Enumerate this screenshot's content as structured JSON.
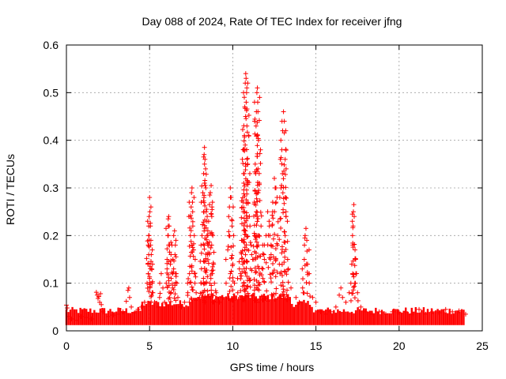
{
  "chart_data": {
    "type": "scatter",
    "title": "Day 088 of 2024, Rate Of TEC Index for receiver jfng",
    "xlabel": "GPS time / hours",
    "ylabel": "ROTI / TECUs",
    "xlim": [
      0,
      25
    ],
    "ylim": [
      0,
      0.6
    ],
    "xticks": [
      "0",
      "5",
      "10",
      "15",
      "20",
      "25"
    ],
    "yticks": [
      "0",
      "0.1",
      "0.2",
      "0.3",
      "0.4",
      "0.5",
      "0.6"
    ],
    "grid": true,
    "marker": "+",
    "color": "#ff0000",
    "series": [
      {
        "name": "ROTI",
        "points": [
          [
            0.0,
            0.054
          ],
          [
            0.05,
            0.048
          ],
          [
            0.1,
            0.03
          ],
          [
            0.3,
            0.025
          ],
          [
            0.6,
            0.022
          ],
          [
            0.9,
            0.03
          ],
          [
            1.2,
            0.028
          ],
          [
            1.5,
            0.025
          ],
          [
            1.8,
            0.081
          ],
          [
            1.85,
            0.075
          ],
          [
            1.9,
            0.068
          ],
          [
            1.95,
            0.072
          ],
          [
            2.0,
            0.06
          ],
          [
            2.05,
            0.078
          ],
          [
            2.1,
            0.055
          ],
          [
            2.2,
            0.04
          ],
          [
            2.5,
            0.03
          ],
          [
            2.8,
            0.033
          ],
          [
            3.1,
            0.035
          ],
          [
            3.4,
            0.04
          ],
          [
            3.6,
            0.062
          ],
          [
            3.7,
            0.085
          ],
          [
            3.75,
            0.09
          ],
          [
            3.8,
            0.07
          ],
          [
            3.9,
            0.05
          ],
          [
            4.1,
            0.038
          ],
          [
            4.3,
            0.045
          ],
          [
            4.5,
            0.05
          ],
          [
            4.7,
            0.06
          ],
          [
            4.85,
            0.1
          ],
          [
            4.9,
            0.14
          ],
          [
            4.92,
            0.18
          ],
          [
            4.95,
            0.2
          ],
          [
            4.97,
            0.24
          ],
          [
            5.0,
            0.28
          ],
          [
            5.02,
            0.25
          ],
          [
            5.05,
            0.22
          ],
          [
            5.08,
            0.19
          ],
          [
            5.1,
            0.16
          ],
          [
            5.12,
            0.13
          ],
          [
            5.15,
            0.1
          ],
          [
            5.2,
            0.08
          ],
          [
            5.3,
            0.06
          ],
          [
            5.5,
            0.05
          ],
          [
            5.6,
            0.07
          ],
          [
            5.7,
            0.12
          ],
          [
            5.8,
            0.09
          ],
          [
            5.9,
            0.06
          ],
          [
            6.0,
            0.1
          ],
          [
            6.05,
            0.15
          ],
          [
            6.1,
            0.2
          ],
          [
            6.12,
            0.235
          ],
          [
            6.15,
            0.24
          ],
          [
            6.18,
            0.22
          ],
          [
            6.2,
            0.18
          ],
          [
            6.25,
            0.14
          ],
          [
            6.3,
            0.11
          ],
          [
            6.4,
            0.15
          ],
          [
            6.45,
            0.2
          ],
          [
            6.5,
            0.21
          ],
          [
            6.55,
            0.18
          ],
          [
            6.6,
            0.12
          ],
          [
            6.7,
            0.07
          ],
          [
            6.9,
            0.05
          ],
          [
            7.1,
            0.06
          ],
          [
            7.3,
            0.08
          ],
          [
            7.4,
            0.12
          ],
          [
            7.45,
            0.2
          ],
          [
            7.5,
            0.26
          ],
          [
            7.52,
            0.29
          ],
          [
            7.55,
            0.3
          ],
          [
            7.58,
            0.27
          ],
          [
            7.6,
            0.22
          ],
          [
            7.65,
            0.17
          ],
          [
            7.7,
            0.12
          ],
          [
            7.8,
            0.08
          ],
          [
            8.0,
            0.07
          ],
          [
            8.1,
            0.1
          ],
          [
            8.15,
            0.2
          ],
          [
            8.2,
            0.29
          ],
          [
            8.25,
            0.33
          ],
          [
            8.28,
            0.37
          ],
          [
            8.3,
            0.385
          ],
          [
            8.33,
            0.36
          ],
          [
            8.38,
            0.3
          ],
          [
            8.4,
            0.25
          ],
          [
            8.45,
            0.2
          ],
          [
            8.5,
            0.18
          ],
          [
            8.55,
            0.23
          ],
          [
            8.6,
            0.265
          ],
          [
            8.65,
            0.29
          ],
          [
            8.7,
            0.305
          ],
          [
            8.75,
            0.26
          ],
          [
            8.8,
            0.2
          ],
          [
            8.85,
            0.14
          ],
          [
            8.9,
            0.1
          ],
          [
            9.0,
            0.08
          ],
          [
            9.2,
            0.06
          ],
          [
            9.4,
            0.07
          ],
          [
            9.6,
            0.1
          ],
          [
            9.7,
            0.17
          ],
          [
            9.8,
            0.26
          ],
          [
            9.85,
            0.3
          ],
          [
            9.9,
            0.28
          ],
          [
            9.95,
            0.22
          ],
          [
            10.0,
            0.14
          ],
          [
            10.1,
            0.1
          ],
          [
            10.3,
            0.08
          ],
          [
            10.4,
            0.13
          ],
          [
            10.5,
            0.165
          ],
          [
            10.6,
            0.14
          ],
          [
            10.62,
            0.27
          ],
          [
            10.65,
            0.33
          ],
          [
            10.67,
            0.38
          ],
          [
            10.7,
            0.41
          ],
          [
            10.72,
            0.47
          ],
          [
            10.75,
            0.52
          ],
          [
            10.78,
            0.54
          ],
          [
            10.8,
            0.53
          ],
          [
            10.83,
            0.5
          ],
          [
            10.85,
            0.43
          ],
          [
            10.9,
            0.35
          ],
          [
            11.0,
            0.24
          ],
          [
            11.1,
            0.18
          ],
          [
            11.2,
            0.15
          ],
          [
            11.3,
            0.27
          ],
          [
            11.35,
            0.35
          ],
          [
            11.4,
            0.43
          ],
          [
            11.42,
            0.46
          ],
          [
            11.45,
            0.5
          ],
          [
            11.48,
            0.51
          ],
          [
            11.5,
            0.48
          ],
          [
            11.55,
            0.4
          ],
          [
            11.6,
            0.31
          ],
          [
            11.7,
            0.22
          ],
          [
            11.8,
            0.18
          ],
          [
            11.9,
            0.15
          ],
          [
            12.0,
            0.2
          ],
          [
            12.1,
            0.25
          ],
          [
            12.2,
            0.22
          ],
          [
            12.3,
            0.18
          ],
          [
            12.4,
            0.27
          ],
          [
            12.5,
            0.32
          ],
          [
            12.55,
            0.3
          ],
          [
            12.6,
            0.27
          ],
          [
            12.7,
            0.2
          ],
          [
            12.8,
            0.14
          ],
          [
            12.9,
            0.3
          ],
          [
            12.95,
            0.38
          ],
          [
            13.0,
            0.42
          ],
          [
            13.05,
            0.46
          ],
          [
            13.1,
            0.44
          ],
          [
            13.15,
            0.36
          ],
          [
            13.2,
            0.25
          ],
          [
            13.3,
            0.15
          ],
          [
            13.5,
            0.09
          ],
          [
            13.8,
            0.07
          ],
          [
            14.0,
            0.06
          ],
          [
            14.2,
            0.09
          ],
          [
            14.3,
            0.15
          ],
          [
            14.35,
            0.2
          ],
          [
            14.4,
            0.215
          ],
          [
            14.45,
            0.19
          ],
          [
            14.5,
            0.14
          ],
          [
            14.6,
            0.1
          ],
          [
            14.8,
            0.07
          ],
          [
            15.0,
            0.06
          ],
          [
            15.3,
            0.04
          ],
          [
            15.6,
            0.035
          ],
          [
            15.9,
            0.04
          ],
          [
            16.2,
            0.05
          ],
          [
            16.4,
            0.075
          ],
          [
            16.5,
            0.09
          ],
          [
            16.6,
            0.07
          ],
          [
            16.8,
            0.06
          ],
          [
            17.0,
            0.08
          ],
          [
            17.1,
            0.1
          ],
          [
            17.15,
            0.14
          ],
          [
            17.2,
            0.2
          ],
          [
            17.25,
            0.25
          ],
          [
            17.28,
            0.265
          ],
          [
            17.3,
            0.24
          ],
          [
            17.35,
            0.17
          ],
          [
            17.4,
            0.12
          ],
          [
            17.5,
            0.08
          ],
          [
            17.7,
            0.05
          ],
          [
            18.0,
            0.04
          ],
          [
            18.4,
            0.035
          ],
          [
            18.8,
            0.04
          ],
          [
            19.2,
            0.035
          ],
          [
            19.6,
            0.04
          ],
          [
            20.0,
            0.038
          ],
          [
            20.4,
            0.04
          ],
          [
            20.8,
            0.035
          ],
          [
            21.2,
            0.045
          ],
          [
            21.6,
            0.035
          ],
          [
            22.0,
            0.04
          ],
          [
            22.4,
            0.038
          ],
          [
            22.8,
            0.045
          ],
          [
            23.2,
            0.04
          ],
          [
            23.6,
            0.042
          ],
          [
            24.0,
            0.035
          ]
        ]
      }
    ]
  }
}
